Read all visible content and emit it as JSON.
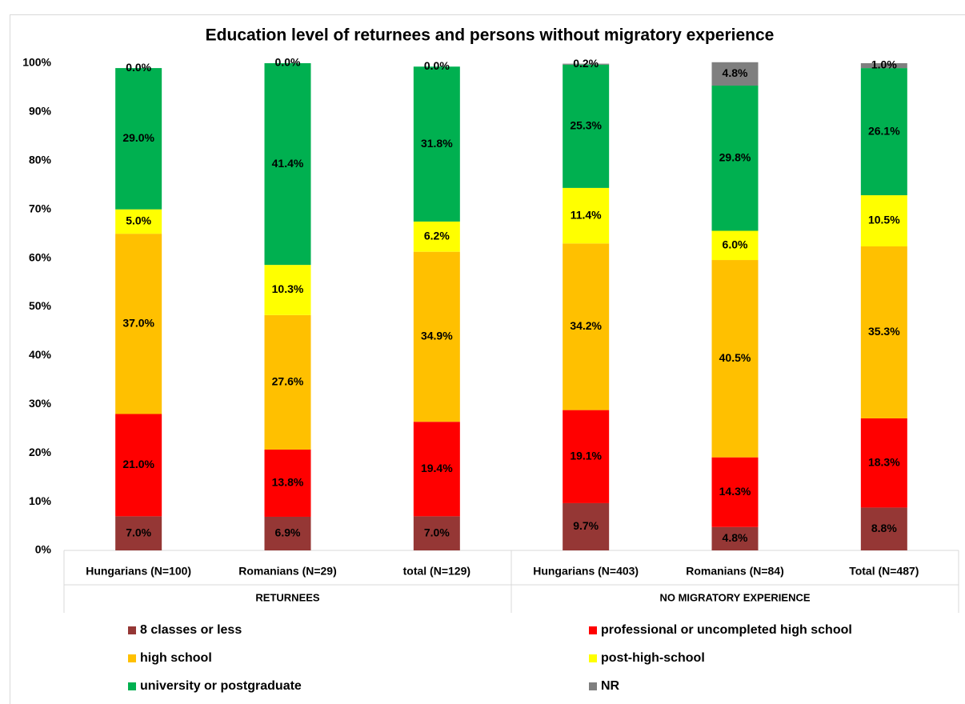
{
  "chart_data": {
    "type": "stacked_bar",
    "title": "Education level of returnees and persons without migratory experience",
    "categories": [
      "Hungarians (N=100)",
      "Romanians (N=29)",
      "total (N=129)",
      "Hungarians (N=403)",
      "Romanians (N=84)",
      "Total (N=487)"
    ],
    "group_labels": [
      "RETURNEES",
      "NO MIGRATORY EXPERIENCE"
    ],
    "ylim": [
      0,
      100
    ],
    "yticks": [
      {
        "value": 0,
        "label": "0%"
      },
      {
        "value": 10,
        "label": "10%"
      },
      {
        "value": 20,
        "label": "20%"
      },
      {
        "value": 30,
        "label": "30%"
      },
      {
        "value": 40,
        "label": "40%"
      },
      {
        "value": 50,
        "label": "50%"
      },
      {
        "value": 60,
        "label": "60%"
      },
      {
        "value": 70,
        "label": "70%"
      },
      {
        "value": 80,
        "label": "80%"
      },
      {
        "value": 90,
        "label": "90%"
      },
      {
        "value": 100,
        "label": "100%"
      }
    ],
    "legend": "bottom",
    "series": [
      {
        "name": "8 classes or less",
        "color": "#953735",
        "values": [
          7.0,
          6.9,
          7.0,
          9.7,
          4.8,
          8.8
        ],
        "value_labels": [
          "7.0%",
          "6.9%",
          "7.0%",
          "9.7%",
          "4.8%",
          "8.8%"
        ]
      },
      {
        "name": "professional or uncompleted high school",
        "color": "#ff0000",
        "values": [
          21.0,
          13.8,
          19.4,
          19.1,
          14.3,
          18.3
        ],
        "value_labels": [
          "21.0%",
          "13.8%",
          "19.4%",
          "19.1%",
          "14.3%",
          "18.3%"
        ]
      },
      {
        "name": "high school",
        "color": "#ffc000",
        "values": [
          37.0,
          27.6,
          34.9,
          34.2,
          40.5,
          35.3
        ],
        "value_labels": [
          "37.0%",
          "27.6%",
          "34.9%",
          "34.2%",
          "40.5%",
          "35.3%"
        ]
      },
      {
        "name": "post-high-school",
        "color": "#ffff00",
        "values": [
          5.0,
          10.3,
          6.2,
          11.4,
          6.0,
          10.5
        ],
        "value_labels": [
          "5.0%",
          "10.3%",
          "6.2%",
          "11.4%",
          "6.0%",
          "10.5%"
        ]
      },
      {
        "name": "university or postgraduate",
        "color": "#00b050",
        "values": [
          29.0,
          41.4,
          31.8,
          25.3,
          29.8,
          26.1
        ],
        "value_labels": [
          "29.0%",
          "41.4%",
          "31.8%",
          "25.3%",
          "29.8%",
          "26.1%"
        ]
      },
      {
        "name": "NR",
        "color": "#7f7f7f",
        "values": [
          0.0,
          0.0,
          0.0,
          0.2,
          4.8,
          1.0
        ],
        "value_labels": [
          "0.0%",
          "0.0%",
          "0.0%",
          "0.2%",
          "4.8%",
          "1.0%"
        ]
      }
    ]
  }
}
